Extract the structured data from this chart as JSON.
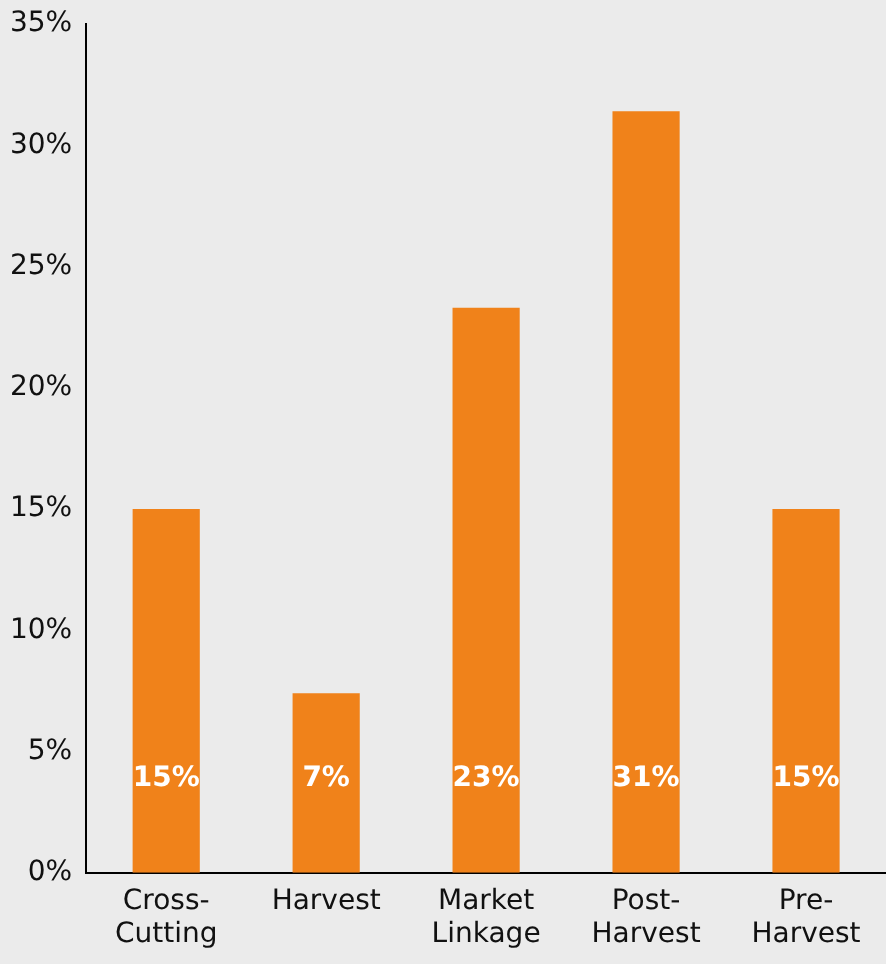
{
  "chart_data": {
    "type": "bar",
    "categories": [
      "Cross-Cutting",
      "Harvest",
      "Market Linkage",
      "Post-Harvest",
      "Pre-Harvest"
    ],
    "values": [
      15,
      7.4,
      23.3,
      31.4,
      15
    ],
    "value_labels": [
      "15%",
      "7%",
      "23%",
      "31%",
      "15%"
    ],
    "color": "#f0821a",
    "ylim": [
      0,
      35
    ],
    "yticks": [
      {
        "value": 0,
        "label": "0%"
      },
      {
        "value": 5,
        "label": "5%"
      },
      {
        "value": 10,
        "label": "10%"
      },
      {
        "value": 15,
        "label": "15%"
      },
      {
        "value": 20,
        "label": "20%"
      },
      {
        "value": 25,
        "label": "25%"
      },
      {
        "value": 30,
        "label": "30%"
      },
      {
        "value": 35,
        "label": "35%"
      }
    ],
    "grid": false,
    "legend": false
  }
}
